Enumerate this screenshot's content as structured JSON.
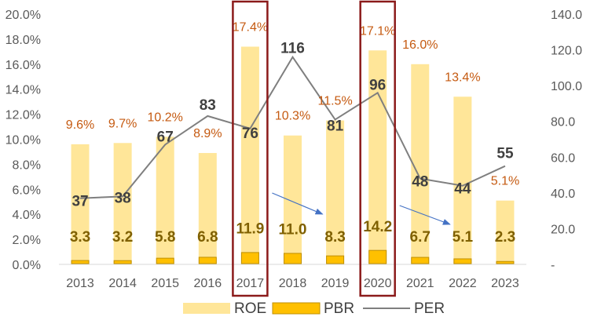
{
  "chart_data": {
    "type": "bar",
    "categories": [
      "2013",
      "2014",
      "2015",
      "2016",
      "2017",
      "2018",
      "2019",
      "2020",
      "2021",
      "2022",
      "2023"
    ],
    "series": [
      {
        "name": "ROE",
        "type": "bar",
        "axis": "left",
        "unit": "%",
        "values": [
          9.6,
          9.7,
          10.2,
          8.9,
          17.4,
          10.3,
          11.5,
          17.1,
          16.0,
          13.4,
          5.1
        ],
        "labels": [
          "9.6%",
          "9.7%",
          "10.2%",
          "8.9%",
          "17.4%",
          "10.3%",
          "11.5%",
          "17.1%",
          "16.0%",
          "13.4%",
          "5.1%"
        ]
      },
      {
        "name": "PBR",
        "type": "bar",
        "axis": "right",
        "values": [
          3.3,
          3.2,
          5.8,
          6.8,
          11.9,
          11.0,
          8.3,
          14.2,
          6.7,
          5.1,
          2.3
        ],
        "labels": [
          "3.3",
          "3.2",
          "5.8",
          "6.8",
          "11.9",
          "11.0",
          "8.3",
          "14.2",
          "6.7",
          "5.1",
          "2.3"
        ]
      },
      {
        "name": "PER",
        "type": "line",
        "axis": "right",
        "values": [
          37,
          38,
          67,
          83,
          76,
          116,
          81,
          96,
          48,
          44,
          55
        ],
        "labels": [
          "37",
          "38",
          "67",
          "83",
          "76",
          "116",
          "81",
          "96",
          "48",
          "44",
          "55"
        ]
      }
    ],
    "left_axis": {
      "ylim": [
        0,
        20
      ],
      "ticks": [
        "0.0%",
        "2.0%",
        "4.0%",
        "6.0%",
        "8.0%",
        "10.0%",
        "12.0%",
        "14.0%",
        "16.0%",
        "18.0%",
        "20.0%"
      ]
    },
    "right_axis": {
      "ylim": [
        0,
        140
      ],
      "ticks": [
        "-",
        "20.0",
        "40.0",
        "60.0",
        "80.0",
        "100.0",
        "120.0",
        "140.0"
      ]
    },
    "highlighted_categories": [
      "2017",
      "2020"
    ],
    "trend_arrows": [
      {
        "from": "2017",
        "to": "2019"
      },
      {
        "from": "2020",
        "to": "2022"
      }
    ],
    "legend": {
      "position": "bottom",
      "entries": [
        "ROE",
        "PBR",
        "PER"
      ]
    },
    "grid": false,
    "colors": {
      "roe": "#FFE699",
      "pbr": "#FFC000",
      "pbr_border": "#BF8F00",
      "per": "#7F7F7F",
      "roe_label": "#C55A11",
      "value_label": "#404040",
      "pbr_label": "#7F6000",
      "highlight": "#8B1A1A",
      "arrow": "#4472C4"
    }
  }
}
